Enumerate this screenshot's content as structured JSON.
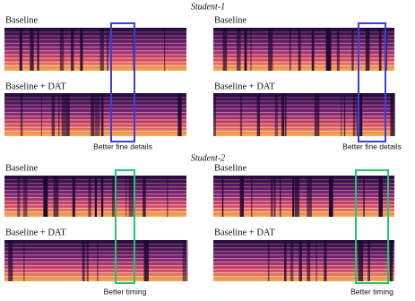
{
  "groups": [
    {
      "title": "Student-1",
      "box_color": "#3b3fd9",
      "columns": [
        {
          "top_label": "Baseline",
          "bottom_label": "Baseline + DAT",
          "annotation": "Better fine details"
        },
        {
          "top_label": "Baseline",
          "bottom_label": "Baseline + DAT",
          "annotation": "Better fine details"
        }
      ]
    },
    {
      "title": "Student-2",
      "box_color": "#22c76a",
      "columns": [
        {
          "top_label": "Baseline",
          "bottom_label": "Baseline + DAT",
          "annotation": "Better timing"
        },
        {
          "top_label": "Baseline",
          "bottom_label": "Baseline + DAT",
          "annotation": "Better timing"
        }
      ]
    }
  ]
}
